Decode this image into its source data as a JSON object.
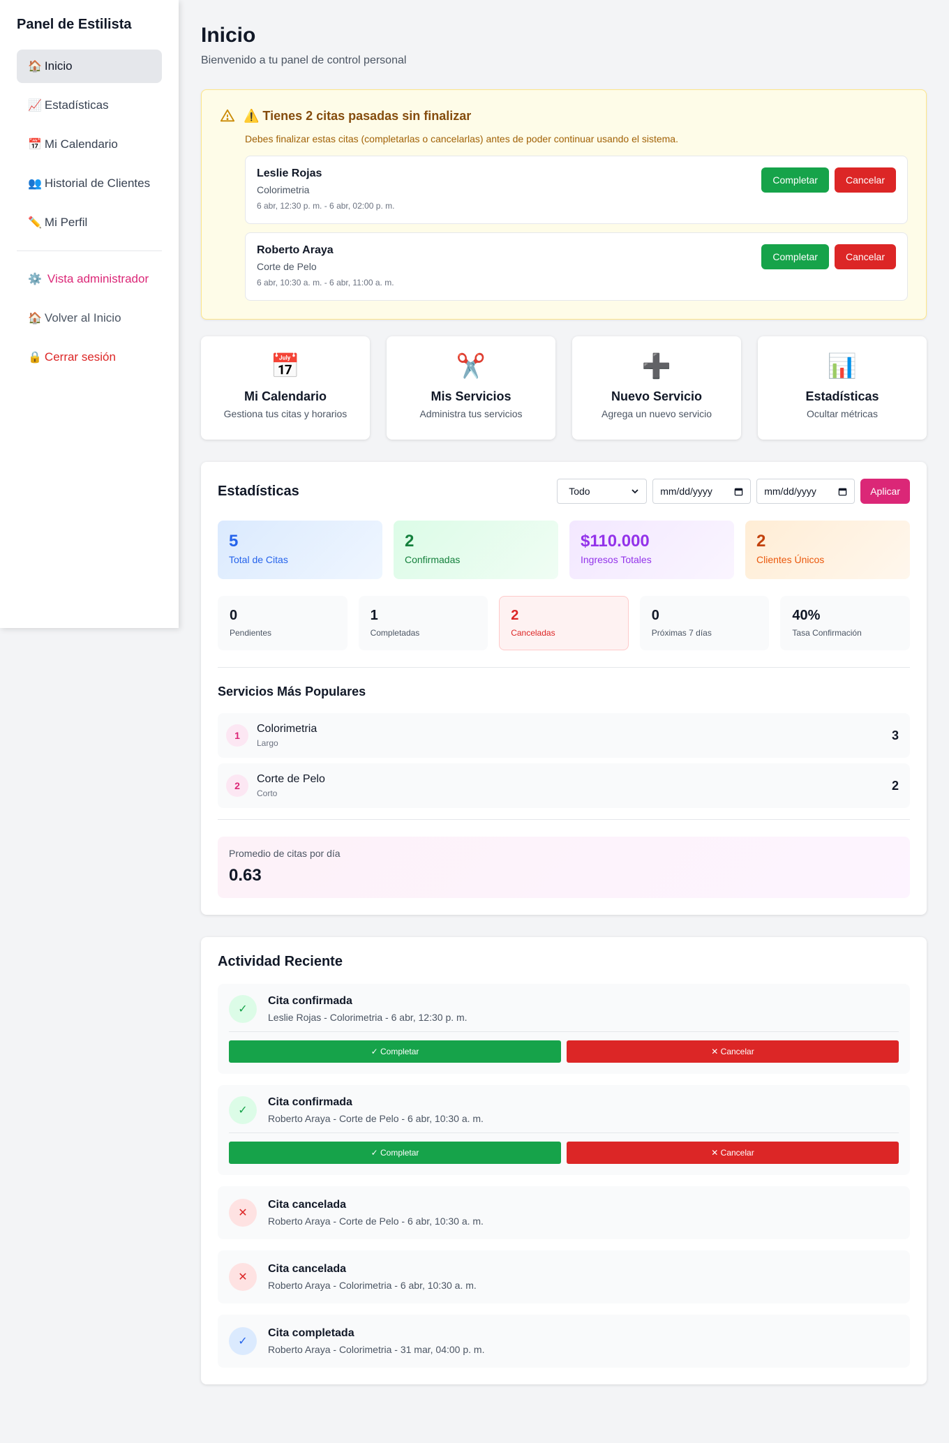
{
  "sidebar": {
    "title": "Panel de Estilista",
    "items": [
      {
        "emoji": "🏠",
        "label": "Inicio"
      },
      {
        "emoji": "📈",
        "label": "Estadísticas"
      },
      {
        "emoji": "📅",
        "label": "Mi Calendario"
      },
      {
        "emoji": "👥",
        "label": "Historial de Clientes"
      },
      {
        "emoji": "✏️",
        "label": "Mi Perfil"
      }
    ],
    "admin": {
      "emoji": "⚙️",
      "label": "Vista administrador"
    },
    "home": {
      "emoji": "🏠",
      "label": "Volver al Inicio"
    },
    "logout": {
      "emoji": "🔒",
      "label": "Cerrar sesión"
    }
  },
  "header": {
    "title": "Inicio",
    "subtitle": "Bienvenido a tu panel de control personal"
  },
  "warning": {
    "title": "⚠️ Tienes 2 citas pasadas sin finalizar",
    "description": "Debes finalizar estas citas (completarlas o cancelarlas) antes de poder continuar usando el sistema.",
    "complete_label": "Completar",
    "cancel_label": "Cancelar",
    "appointments": [
      {
        "client": "Leslie Rojas",
        "service": "Colorimetria",
        "time": "6 abr, 12:30 p. m. - 6 abr, 02:00 p. m."
      },
      {
        "client": "Roberto Araya",
        "service": "Corte de Pelo",
        "time": "6 abr, 10:30 a. m. - 6 abr, 11:00 a. m."
      }
    ]
  },
  "quick_actions": [
    {
      "icon": "📅",
      "title": "Mi Calendario",
      "desc": "Gestiona tus citas y horarios"
    },
    {
      "icon": "✂️",
      "title": "Mis Servicios",
      "desc": "Administra tus servicios"
    },
    {
      "icon": "➕",
      "title": "Nuevo Servicio",
      "desc": "Agrega un nuevo servicio"
    },
    {
      "icon": "📊",
      "title": "Estadísticas",
      "desc": "Ocultar métricas"
    }
  ],
  "stats": {
    "title": "Estadísticas",
    "filter": {
      "period": "Todo",
      "date_from_placeholder": "mm/dd/yyyy",
      "date_to_placeholder": "mm/dd/yyyy",
      "apply_label": "Aplicar"
    },
    "main": [
      {
        "value": "5",
        "label": "Total de Citas"
      },
      {
        "value": "2",
        "label": "Confirmadas"
      },
      {
        "value": "$110.000",
        "label": "Ingresos Totales"
      },
      {
        "value": "2",
        "label": "Clientes Únicos"
      }
    ],
    "secondary": [
      {
        "value": "0",
        "label": "Pendientes"
      },
      {
        "value": "1",
        "label": "Completadas"
      },
      {
        "value": "2",
        "label": "Canceladas"
      },
      {
        "value": "0",
        "label": "Próximas 7 días"
      },
      {
        "value": "40%",
        "label": "Tasa Confirmación"
      }
    ],
    "popular_title": "Servicios Más Populares",
    "popular": [
      {
        "rank": "1",
        "name": "Colorimetria",
        "sub": "Largo",
        "count": "3"
      },
      {
        "rank": "2",
        "name": "Corte de Pelo",
        "sub": "Corto",
        "count": "2"
      }
    ],
    "average": {
      "label": "Promedio de citas por día",
      "value": "0.63"
    }
  },
  "activity": {
    "title": "Actividad Reciente",
    "complete_label": "✓ Completar",
    "cancel_label": "✕ Cancelar",
    "items": [
      {
        "icon": "✓",
        "title": "Cita confirmada",
        "desc": "Leslie Rojas - Colorimetria - 6 abr, 12:30 p. m."
      },
      {
        "icon": "✓",
        "title": "Cita confirmada",
        "desc": "Roberto Araya - Corte de Pelo - 6 abr, 10:30 a. m."
      },
      {
        "icon": "✕",
        "title": "Cita cancelada",
        "desc": "Roberto Araya - Corte de Pelo - 6 abr, 10:30 a. m."
      },
      {
        "icon": "✕",
        "title": "Cita cancelada",
        "desc": "Roberto Araya - Colorimetria - 6 abr, 10:30 a. m."
      },
      {
        "icon": "✓",
        "title": "Cita completada",
        "desc": "Roberto Araya - Colorimetria - 31 mar, 04:00 p. m."
      }
    ]
  }
}
